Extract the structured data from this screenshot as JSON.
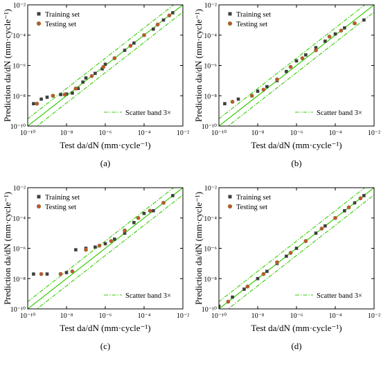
{
  "chart_data": [
    {
      "panel": "(a)",
      "type": "scatter",
      "scale": "log",
      "xlabel": "Test da/dN (mm·cycle⁻¹)",
      "ylabel": "Prediction da/dN (mm·cycle⁻¹)",
      "xlim": [
        1e-10,
        0.01
      ],
      "ylim": [
        1e-10,
        0.01
      ],
      "xticks": [
        "10⁻¹⁰",
        "10⁻⁸",
        "10⁻⁶",
        "10⁻⁴",
        "10⁻²"
      ],
      "yticks": [
        "10⁻¹⁰",
        "10⁻⁸",
        "10⁻⁶",
        "10⁻⁴",
        "10⁻²"
      ],
      "legend": [
        "Training set",
        "Testing set"
      ],
      "band_label": "Scatter band 3×",
      "band_factor": 3,
      "series": [
        {
          "name": "Training set",
          "marker": "square",
          "color": "#3f3f3f",
          "x": [
            2e-10,
            5e-10,
            1e-09,
            2e-09,
            5e-09,
            1e-08,
            2e-08,
            4e-08,
            7e-08,
            1e-07,
            3e-07,
            7e-07,
            1e-06,
            3e-06,
            1e-05,
            3e-05,
            0.0001,
            0.0003,
            0.001,
            0.003
          ],
          "y": [
            3e-09,
            6e-09,
            8e-09,
            1e-08,
            1.2e-08,
            1.3e-08,
            1.5e-08,
            3e-08,
            8e-08,
            1.5e-07,
            3e-07,
            6e-07,
            1.2e-06,
            3e-06,
            1e-05,
            3e-05,
            0.0001,
            0.00025,
            0.001,
            0.003
          ]
        },
        {
          "name": "Testing set",
          "marker": "circle",
          "color": "#c8502f",
          "x": [
            3e-10,
            2e-09,
            8e-09,
            3e-08,
            2e-07,
            8e-07,
            3e-06,
            2e-05,
            0.0001,
            0.0005,
            0.002
          ],
          "y": [
            3e-09,
            1e-08,
            1.2e-08,
            3e-08,
            2e-07,
            8e-07,
            3e-06,
            2e-05,
            0.0001,
            0.0005,
            0.002
          ]
        }
      ]
    },
    {
      "panel": "(b)",
      "type": "scatter",
      "scale": "log",
      "xlabel": "Test da/dN (mm·cycle⁻¹)",
      "ylabel": "Prediction da/dN (mm·cycle⁻¹)",
      "xlim": [
        1e-10,
        0.01
      ],
      "ylim": [
        1e-10,
        0.01
      ],
      "xticks": [
        "10⁻¹⁰",
        "10⁻⁸",
        "10⁻⁶",
        "10⁻⁴",
        "10⁻²"
      ],
      "yticks": [
        "10⁻¹⁰",
        "10⁻⁸",
        "10⁻⁶",
        "10⁻⁴",
        "10⁻²"
      ],
      "legend": [
        "Training set",
        "Testing set"
      ],
      "band_label": "Scatter band 3×",
      "band_factor": 3,
      "series": [
        {
          "name": "Training set",
          "marker": "square",
          "color": "#3f3f3f",
          "x": [
            2e-10,
            1e-09,
            5e-09,
            1e-08,
            3e-08,
            1e-07,
            3e-07,
            1e-06,
            3e-06,
            1e-05,
            3e-05,
            0.0001,
            0.0003,
            0.001,
            0.003
          ],
          "y": [
            3e-09,
            6e-09,
            1e-08,
            2e-08,
            4e-08,
            1e-07,
            4e-07,
            2e-06,
            5e-06,
            1.5e-05,
            4e-05,
            0.00012,
            0.0003,
            0.0006,
            0.001
          ]
        },
        {
          "name": "Testing set",
          "marker": "circle",
          "color": "#c8502f",
          "x": [
            5e-10,
            5e-09,
            2e-08,
            1e-07,
            5e-07,
            2e-06,
            1e-05,
            5e-05,
            0.0002,
            0.001
          ],
          "y": [
            4e-09,
            1e-08,
            2.5e-08,
            1.2e-07,
            8e-07,
            3e-06,
            1e-05,
            8e-05,
            0.0002,
            0.0006
          ]
        }
      ]
    },
    {
      "panel": "(c)",
      "type": "scatter",
      "scale": "log",
      "xlabel": "Test da/dN (mm·cycle⁻¹)",
      "ylabel": "Prediction da/dN (mm·cycle⁻¹)",
      "xlim": [
        1e-10,
        0.01
      ],
      "ylim": [
        1e-10,
        0.01
      ],
      "xticks": [
        "10⁻¹⁰",
        "10⁻⁸",
        "10⁻⁶",
        "10⁻⁴",
        "10⁻²"
      ],
      "yticks": [
        "10⁻¹⁰",
        "10⁻⁸",
        "10⁻⁶",
        "10⁻⁴",
        "10⁻²"
      ],
      "legend": [
        "Training set",
        "Testing set"
      ],
      "band_label": "Scatter band 3×",
      "band_factor": 3,
      "series": [
        {
          "name": "Training set",
          "marker": "square",
          "color": "#3f3f3f",
          "x": [
            2e-10,
            1e-09,
            5e-09,
            1e-08,
            3e-08,
            1e-07,
            3e-07,
            1e-06,
            3e-06,
            1e-05,
            3e-05,
            0.0001,
            0.0003,
            0.001,
            0.003
          ],
          "y": [
            2e-08,
            2e-08,
            2e-08,
            2.5e-08,
            8e-07,
            1e-06,
            1.2e-06,
            2e-06,
            4e-06,
            1e-05,
            5e-05,
            0.0002,
            0.0003,
            0.001,
            0.003
          ]
        },
        {
          "name": "Testing set",
          "marker": "circle",
          "color": "#c8502f",
          "x": [
            5e-10,
            5e-09,
            2e-08,
            1e-07,
            5e-07,
            2e-06,
            1e-05,
            5e-05,
            0.0002,
            0.001
          ],
          "y": [
            2e-08,
            2e-08,
            3e-08,
            8e-07,
            1.5e-06,
            3e-06,
            1.5e-05,
            0.0001,
            0.0003,
            0.001
          ]
        }
      ]
    },
    {
      "panel": "(d)",
      "type": "scatter",
      "scale": "log",
      "xlabel": "Test da/dN (mm·cycle⁻¹)",
      "ylabel": "Prediction da/dN (mm·cycle⁻¹)",
      "xlim": [
        1e-10,
        0.01
      ],
      "ylim": [
        1e-10,
        0.01
      ],
      "xticks": [
        "10⁻¹⁰",
        "10⁻⁸",
        "10⁻⁶",
        "10⁻⁴",
        "10⁻²"
      ],
      "yticks": [
        "10⁻¹⁰",
        "10⁻⁸",
        "10⁻⁶",
        "10⁻⁴",
        "10⁻²"
      ],
      "legend": [
        "Training set",
        "Testing set"
      ],
      "band_label": "Scatter band 3×",
      "band_factor": 3,
      "series": [
        {
          "name": "Training set",
          "marker": "square",
          "color": "#3f3f3f",
          "x": [
            1e-10,
            5e-10,
            2e-09,
            1e-08,
            3e-08,
            1e-07,
            3e-07,
            1e-06,
            3e-06,
            1e-05,
            3e-05,
            0.0001,
            0.0003,
            0.001,
            0.003
          ],
          "y": [
            1.5e-10,
            6e-10,
            2e-09,
            1e-08,
            3e-08,
            1e-07,
            3e-07,
            1e-06,
            3e-06,
            1e-05,
            3e-05,
            0.0001,
            0.0003,
            0.001,
            0.003
          ]
        },
        {
          "name": "Testing set",
          "marker": "circle",
          "color": "#c8502f",
          "x": [
            3e-10,
            3e-09,
            2e-08,
            1e-07,
            5e-07,
            3e-06,
            2e-05,
            0.0001,
            0.0005,
            0.002
          ],
          "y": [
            3e-10,
            3e-09,
            2e-08,
            1.2e-07,
            5e-07,
            3e-06,
            2e-05,
            0.0001,
            0.0005,
            0.002
          ]
        }
      ]
    }
  ],
  "colors": {
    "band": "#33cc00",
    "training": "#3f3f3f",
    "testing": "#c8502f"
  }
}
